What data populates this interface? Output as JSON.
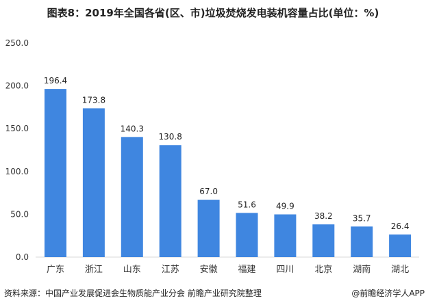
{
  "chart_data": {
    "type": "bar",
    "title": "图表8：2019年全国各省(区、市)垃圾焚烧发电装机容量占比(单位：%)",
    "categories": [
      "广东",
      "浙江",
      "山东",
      "江苏",
      "安徽",
      "福建",
      "四川",
      "北京",
      "湖南",
      "湖北"
    ],
    "values": [
      196.4,
      173.8,
      140.3,
      130.8,
      67.0,
      51.6,
      49.9,
      38.2,
      35.7,
      26.4
    ],
    "ylim": [
      0,
      250
    ],
    "yticks": [
      "0.0",
      "50.0",
      "100.0",
      "150.0",
      "200.0",
      "250.0"
    ],
    "xlabel": "",
    "ylabel": "",
    "grid": false,
    "bar_color": "#3f86e0"
  },
  "footer": {
    "source": "资料来源：中国产业发展促进会生物质能产业分会 前瞻产业研究院整理",
    "credit": "@前瞻经济学人APP"
  }
}
